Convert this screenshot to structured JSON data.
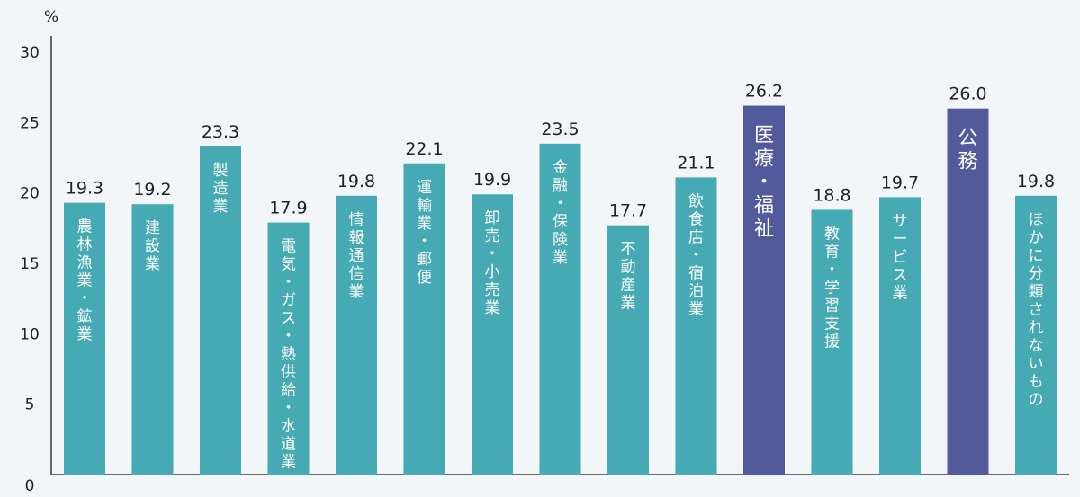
{
  "chart_data": {
    "type": "bar",
    "unit_label": "%",
    "ylim": [
      0,
      30
    ],
    "yticks": [
      0,
      5,
      10,
      15,
      20,
      25,
      30
    ],
    "grid": false,
    "categories": [
      "農林漁業・鉱業",
      "建設業",
      "製造業",
      "電気・ガス・熱供給・水道業",
      "情報通信業",
      "運輸業・郵便",
      "卸売・小売業",
      "金融・保険業",
      "不動産業",
      "飲食店・宿泊業",
      "医療・福祉",
      "教育・学習支援",
      "サービス業",
      "公務",
      "ほかに分類されないもの"
    ],
    "values": [
      19.3,
      19.2,
      23.3,
      17.9,
      19.8,
      22.1,
      19.9,
      23.5,
      17.7,
      21.1,
      26.2,
      18.8,
      19.7,
      26.0,
      19.8
    ],
    "value_labels": [
      "19.3",
      "19.2",
      "23.3",
      "17.9",
      "19.8",
      "22.1",
      "19.9",
      "23.5",
      "17.7",
      "21.1",
      "26.2",
      "18.8",
      "19.7",
      "26.0",
      "19.8"
    ],
    "highlighted": [
      false,
      false,
      false,
      false,
      false,
      false,
      false,
      false,
      false,
      false,
      true,
      false,
      false,
      true,
      false
    ],
    "colors": {
      "bar": "#45aab3",
      "highlight": "#535a9c",
      "axis": "#3a3a3a",
      "text": "#222222"
    }
  }
}
